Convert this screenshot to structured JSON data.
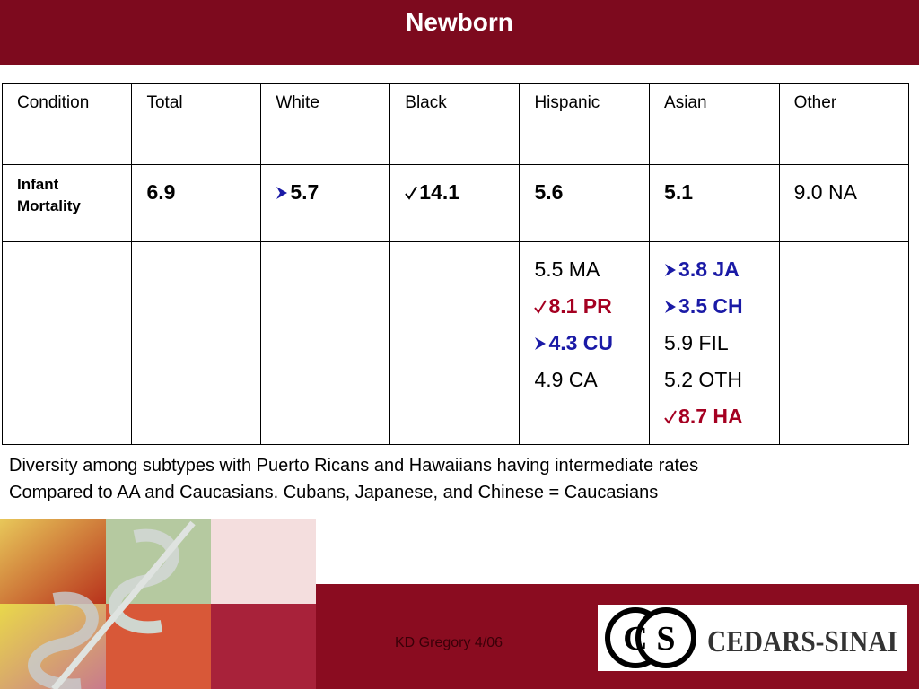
{
  "header": {
    "title": "Newborn"
  },
  "table": {
    "columns": [
      "Condition",
      "Total",
      "White",
      "Black",
      "Hispanic",
      "Asian",
      "Other"
    ],
    "rows": [
      [
        [
          {
            "text": "Infant Mortality",
            "bold": true,
            "small": true
          }
        ],
        [
          {
            "text": "6.9",
            "bold": true
          }
        ],
        [
          {
            "text": "5.7",
            "bold": true,
            "marker": "arrow",
            "color": "#000000"
          }
        ],
        [
          {
            "text": "14.1",
            "bold": true,
            "marker": "check",
            "color": "#000000"
          }
        ],
        [
          {
            "text": "5.6",
            "bold": true
          }
        ],
        [
          {
            "text": "5.1",
            "bold": true
          }
        ],
        [
          {
            "text": "9.0 NA",
            "bold": false
          }
        ]
      ],
      [
        [],
        [],
        [],
        [],
        [
          {
            "text": "5.5 MA",
            "bold": false
          },
          {
            "text": "8.1 PR",
            "bold": true,
            "marker": "check",
            "color": "#a50021"
          },
          {
            "text": "4.3 CU",
            "bold": true,
            "marker": "arrow",
            "color": "#1a1aa6"
          },
          {
            "text": "4.9 CA",
            "bold": false
          }
        ],
        [
          {
            "text": "3.8 JA",
            "bold": true,
            "marker": "arrow",
            "color": "#1a1aa6"
          },
          {
            "text": "3.5 CH",
            "bold": true,
            "marker": "arrow",
            "color": "#1a1aa6"
          },
          {
            "text": "5.9 FIL",
            "bold": false
          },
          {
            "text": "5.2 OTH",
            "bold": false
          },
          {
            "text": "8.7 HA",
            "bold": true,
            "marker": "check",
            "color": "#a50021"
          }
        ],
        []
      ]
    ]
  },
  "caption": [
    "Diversity among subtypes with Puerto Ricans and Hawaiians having intermediate rates",
    "Compared to AA and Caucasians.  Cubans, Japanese, and Chinese = Caucasians"
  ],
  "footer": {
    "note": "KD Gregory 4/06",
    "logo_mark": [
      "C",
      "S"
    ],
    "logo": "CEDARS-SINAI"
  }
}
